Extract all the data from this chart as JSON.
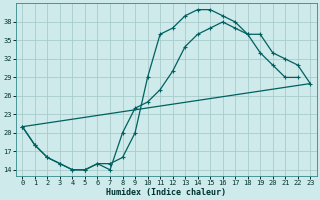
{
  "xlabel": "Humidex (Indice chaleur)",
  "bg_color": "#ceeaea",
  "grid_color": "#a8cccc",
  "line_color": "#006060",
  "ylim": [
    13,
    41
  ],
  "xlim": [
    -0.5,
    23.5
  ],
  "yticks": [
    14,
    17,
    20,
    23,
    26,
    29,
    32,
    35,
    38
  ],
  "xticks": [
    0,
    1,
    2,
    3,
    4,
    5,
    6,
    7,
    8,
    9,
    10,
    11,
    12,
    13,
    14,
    15,
    16,
    17,
    18,
    19,
    20,
    21,
    22,
    23
  ],
  "curve1_x": [
    0,
    1,
    2,
    3,
    4,
    5,
    6,
    7,
    8,
    9,
    10,
    11,
    12,
    13,
    14,
    15,
    16,
    17,
    18,
    19,
    20,
    21,
    22
  ],
  "curve1_y": [
    21,
    18,
    16,
    15,
    14,
    14,
    15,
    15,
    16,
    20,
    29,
    36,
    37,
    39,
    40,
    40,
    39,
    38,
    36,
    33,
    31,
    29,
    29
  ],
  "curve2_x": [
    0,
    1,
    2,
    3,
    4,
    5,
    6,
    7,
    8,
    9,
    10,
    11,
    12,
    13,
    14,
    15,
    16,
    17,
    18,
    19,
    20,
    21,
    22,
    23
  ],
  "curve2_y": [
    21,
    18,
    16,
    15,
    14,
    14,
    15,
    14,
    20,
    24,
    25,
    27,
    30,
    34,
    36,
    37,
    38,
    37,
    36,
    36,
    33,
    32,
    31,
    28
  ],
  "line3_x": [
    0,
    23
  ],
  "line3_y": [
    21,
    28
  ]
}
